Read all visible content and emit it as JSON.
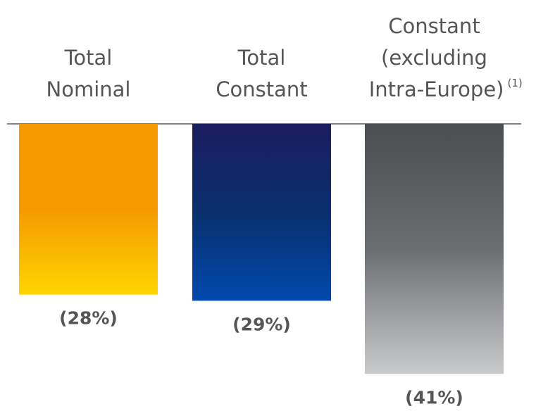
{
  "chart_data": {
    "type": "bar",
    "orientation": "negative-down",
    "categories": [
      {
        "lines": [
          "Total",
          "Nominal"
        ],
        "footnote": ""
      },
      {
        "lines": [
          "Total",
          "Constant"
        ],
        "footnote": ""
      },
      {
        "lines": [
          "Constant",
          "(excluding",
          "Intra-Europe)"
        ],
        "footnote": "(1)"
      }
    ],
    "values": [
      -28,
      -29,
      -41
    ],
    "value_labels": [
      "(28%)",
      "(29%)",
      "(41%)"
    ],
    "ylim": [
      -42,
      0
    ],
    "grid": false,
    "legend": "none",
    "colors": [
      {
        "top": "#f59a00",
        "mid": "#f59a00",
        "bottom": "#ffd500"
      },
      {
        "top": "#1b1d5f",
        "mid": "#0a2f6e",
        "bottom": "#0049ad"
      },
      {
        "top": "#4b4e51",
        "mid": "#6b6e71",
        "bottom": "#c9cacc"
      }
    ]
  }
}
